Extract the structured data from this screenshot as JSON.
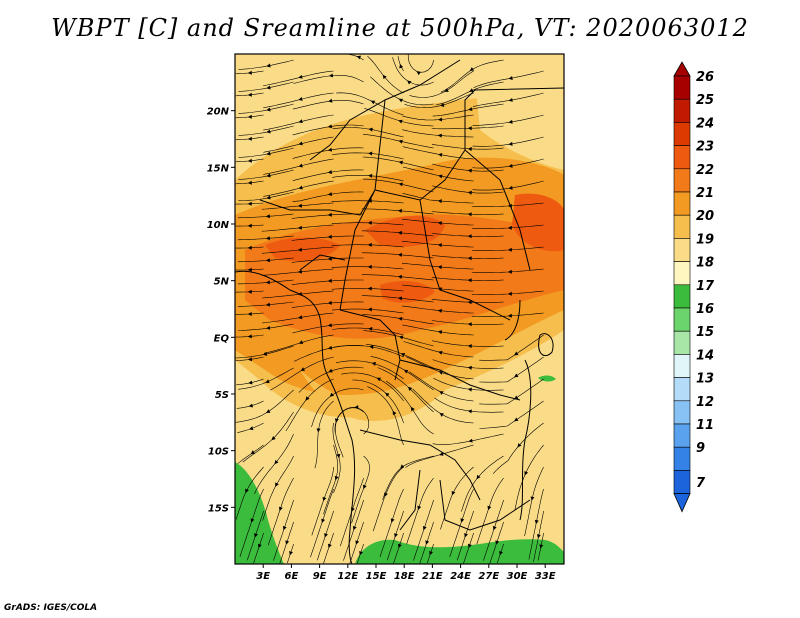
{
  "title": "WBPT [C] and Sreamline at 500hPa, VT: 2020063012",
  "credit": "GrADS: IGES/COLA",
  "map": {
    "lon_range": [
      0,
      35
    ],
    "lat_range": [
      -20,
      25
    ],
    "lat_ticks": [
      {
        "value": 20,
        "label": "20N"
      },
      {
        "value": 15,
        "label": "15N"
      },
      {
        "value": 10,
        "label": "10N"
      },
      {
        "value": 5,
        "label": "5N"
      },
      {
        "value": 0,
        "label": "EQ"
      },
      {
        "value": -5,
        "label": "5S"
      },
      {
        "value": -10,
        "label": "10S"
      },
      {
        "value": -15,
        "label": "15S"
      }
    ],
    "lon_ticks": [
      {
        "value": 3,
        "label": "3E"
      },
      {
        "value": 6,
        "label": "6E"
      },
      {
        "value": 9,
        "label": "9E"
      },
      {
        "value": 12,
        "label": "12E"
      },
      {
        "value": 15,
        "label": "15E"
      },
      {
        "value": 18,
        "label": "18E"
      },
      {
        "value": 21,
        "label": "21E"
      },
      {
        "value": 24,
        "label": "24E"
      },
      {
        "value": 27,
        "label": "27E"
      },
      {
        "value": 30,
        "label": "30E"
      },
      {
        "value": 33,
        "label": "33E"
      }
    ]
  },
  "colorbar": {
    "levels": [
      "26",
      "25",
      "24",
      "23",
      "22",
      "21",
      "20",
      "19",
      "18",
      "17",
      "16",
      "15",
      "14",
      "13",
      "12",
      "11",
      "9",
      "7"
    ],
    "colors": [
      "#a60000",
      "#c01a00",
      "#dc3a00",
      "#ee5a10",
      "#f27a18",
      "#f29a22",
      "#f6be4c",
      "#fadc88",
      "#fff6c0",
      "#3cbc3c",
      "#6cd46c",
      "#a8e6a8",
      "#e0f6f8",
      "#b4dcf8",
      "#88c2f4",
      "#5aa2ee",
      "#3482e6",
      "#1c64dc"
    ]
  }
}
